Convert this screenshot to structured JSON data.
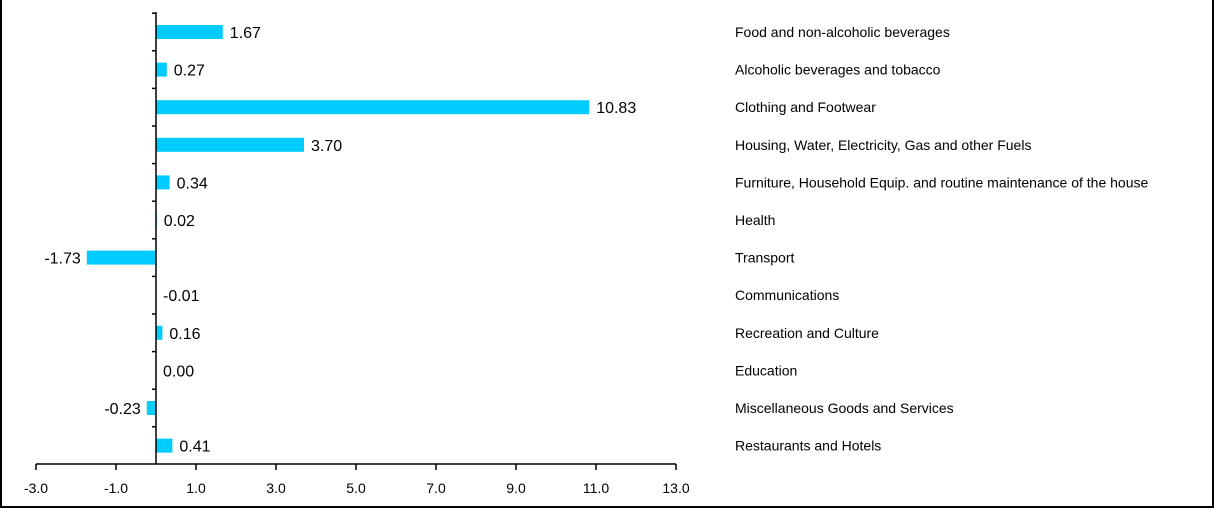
{
  "chart_data": {
    "type": "bar",
    "orientation": "horizontal",
    "categories": [
      "Food and non-alcoholic beverages",
      "Alcoholic beverages and tobacco",
      "Clothing and Footwear",
      "Housing, Water, Electricity, Gas and other Fuels",
      "Furniture, Household Equip. and routine maintenance of the house",
      "Health",
      "Transport",
      "Communications",
      "Recreation and Culture",
      "Education",
      "Miscellaneous Goods and Services",
      "Restaurants and Hotels"
    ],
    "values": [
      1.67,
      0.27,
      10.83,
      3.7,
      0.34,
      0.02,
      -1.73,
      -0.01,
      0.16,
      0.0,
      -0.23,
      0.41
    ],
    "value_labels": [
      "1.67",
      "0.27",
      "10.83",
      "3.70",
      "0.34",
      "0.02",
      "-1.73",
      "-0.01",
      "0.16",
      "0.00",
      "-0.23",
      "0.41"
    ],
    "x_ticks": [
      -3.0,
      -1.0,
      1.0,
      3.0,
      5.0,
      7.0,
      9.0,
      11.0,
      13.0
    ],
    "x_tick_labels": [
      "-3.0",
      "-1.0",
      "1.0",
      "3.0",
      "5.0",
      "7.0",
      "9.0",
      "11.0",
      "13.0"
    ],
    "xlim": [
      -3.0,
      13.0
    ],
    "title": "",
    "xlabel": "",
    "ylabel": "",
    "grid": false,
    "legend": "none",
    "bar_color": "#00CCFF"
  }
}
